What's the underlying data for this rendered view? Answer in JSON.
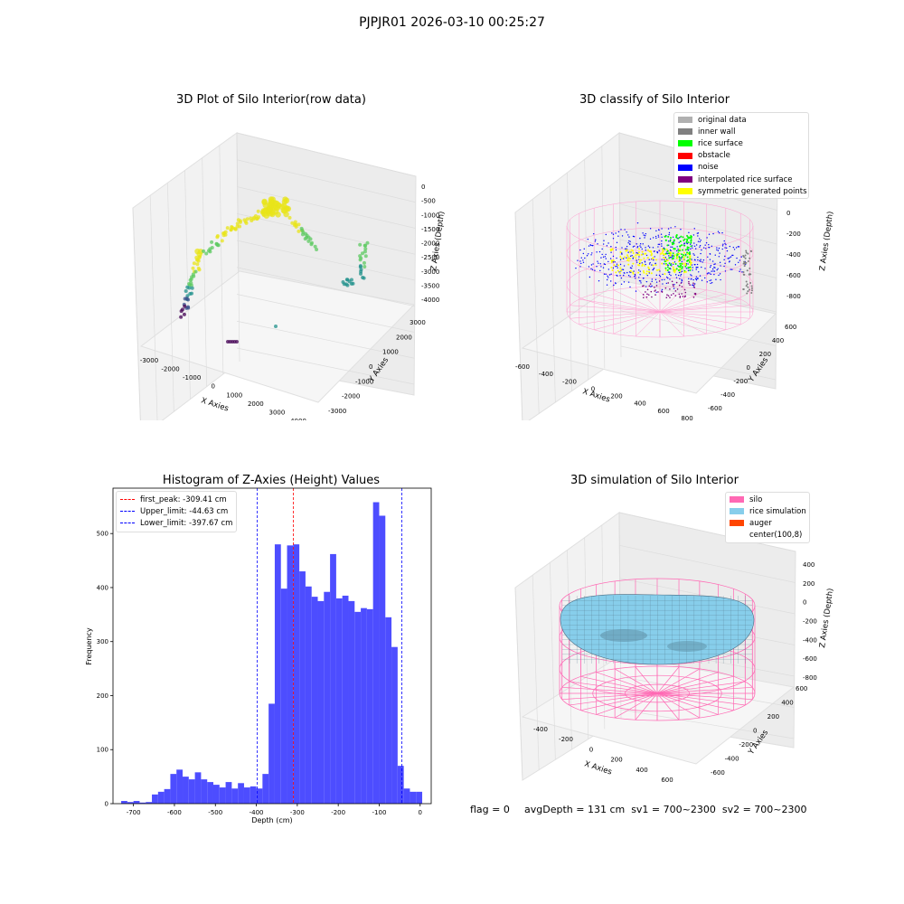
{
  "page": {
    "title": "PJPJR01 2026-03-10 00:25:27"
  },
  "panels": {
    "raw": {
      "title": "3D Plot of Silo Interior(row data)",
      "xlabel": "X Axies",
      "ylabel": "Y Axies",
      "zlabel": "Z Axies (Depth)",
      "xticks": [
        "-3000",
        "-2000",
        "-1000",
        "0",
        "1000",
        "2000",
        "3000",
        "4000"
      ],
      "yticks": [
        "-3000",
        "-2000",
        "-1000",
        "0",
        "1000",
        "2000",
        "3000"
      ],
      "zticks": [
        "0",
        "-500",
        "-1000",
        "-1500",
        "-2000",
        "-2500",
        "-3000",
        "-3500",
        "-4000"
      ]
    },
    "classify": {
      "title": "3D classify of Silo Interior",
      "xlabel": "X Axies",
      "ylabel": "Y Axies",
      "zlabel": "Z Axies (Depth)",
      "xticks": [
        "-600",
        "-400",
        "-200",
        "0",
        "200",
        "400",
        "600",
        "800"
      ],
      "yticks": [
        "-600",
        "-400",
        "-200",
        "0",
        "200",
        "400",
        "600"
      ],
      "zticks": [
        "200",
        "0",
        "-200",
        "-400",
        "-600",
        "-800"
      ],
      "legend": [
        {
          "label": "original data",
          "color": "#b0b0b0"
        },
        {
          "label": "inner wall",
          "color": "#808080"
        },
        {
          "label": "rice surface",
          "color": "#00ff00"
        },
        {
          "label": "obstacle",
          "color": "#ff0000"
        },
        {
          "label": "noise",
          "color": "#0000ff"
        },
        {
          "label": "interpolated rice surface",
          "color": "#800080"
        },
        {
          "label": "symmetric generated points",
          "color": "#ffff00"
        }
      ]
    },
    "histogram": {
      "title": "Histogram of Z-Axies (Height) Values",
      "xlabel": "Depth (cm)",
      "ylabel": "Frequency",
      "legend": [
        {
          "label": "first_peak: -309.41 cm",
          "color": "#ff0000"
        },
        {
          "label": "Upper_limit: -44.63 cm",
          "color": "#0000ff"
        },
        {
          "label": "Lower_limit: -397.67 cm",
          "color": "#0000ff"
        }
      ]
    },
    "simulation": {
      "title": "3D simulation of Silo Interior",
      "xlabel": "X Axies",
      "ylabel": "Y Axies",
      "zlabel": "Z Axies (Depth)",
      "xticks": [
        "-400",
        "-200",
        "0",
        "200",
        "400",
        "600"
      ],
      "yticks": [
        "-600",
        "-400",
        "-200",
        "0",
        "200",
        "400",
        "600"
      ],
      "zticks": [
        "400",
        "200",
        "0",
        "-200",
        "-400",
        "-600",
        "-800"
      ],
      "legend": [
        {
          "label": "silo",
          "color": "#ff69b4"
        },
        {
          "label": "rice simulation",
          "color": "#87ceeb"
        },
        {
          "label": "auger",
          "color": "#ff4500"
        },
        {
          "label": "center(100,8)",
          "color": ""
        }
      ]
    }
  },
  "footer": {
    "flag": "flag = 0",
    "avg": "avgDepth = 131 cm  sv1 = 700~2300  sv2 = 700~2300"
  },
  "colors": {
    "hist_bar": "#4d4dff",
    "silo": "#ff69b4",
    "rice": "#87ceeb",
    "peak_line": "#ff0000",
    "limit_line": "#0000ff"
  },
  "chart_data": {
    "type": "bar",
    "title": "Histogram of Z-Axies (Height) Values",
    "xlabel": "Depth (cm)",
    "ylabel": "Frequency",
    "xlim": [
      -750,
      27
    ],
    "ylim": [
      0,
      584
    ],
    "xticks": [
      -700,
      -600,
      -500,
      -400,
      -300,
      -200,
      -100,
      0
    ],
    "yticks": [
      0,
      100,
      200,
      300,
      400,
      500
    ],
    "bin_edges": [
      -730,
      -715,
      -700,
      -685,
      -670,
      -655,
      -640,
      -625,
      -610,
      -595,
      -580,
      -565,
      -550,
      -535,
      -520,
      -505,
      -490,
      -475,
      -460,
      -445,
      -430,
      -415,
      -400,
      -385,
      -370,
      -355,
      -340,
      -325,
      -310,
      -295,
      -280,
      -265,
      -250,
      -235,
      -220,
      -205,
      -190,
      -175,
      -160,
      -145,
      -130,
      -115,
      -100,
      -85,
      -70,
      -55,
      -40,
      -25,
      -10,
      5
    ],
    "values": [
      5,
      3,
      5,
      2,
      3,
      17,
      22,
      27,
      55,
      63,
      50,
      45,
      58,
      45,
      40,
      35,
      30,
      40,
      28,
      38,
      30,
      32,
      28,
      55,
      185,
      480,
      398,
      478,
      480,
      430,
      402,
      383,
      375,
      392,
      462,
      380,
      385,
      375,
      355,
      362,
      360,
      558,
      533,
      345,
      290,
      70,
      28,
      22,
      22
    ],
    "vlines": [
      {
        "label": "first_peak: -309.41 cm",
        "x": -309.41,
        "color": "#ff0000"
      },
      {
        "label": "Upper_limit: -44.63 cm",
        "x": -44.63,
        "color": "#0000ff"
      },
      {
        "label": "Lower_limit: -397.67 cm",
        "x": -397.67,
        "color": "#0000ff"
      }
    ]
  }
}
